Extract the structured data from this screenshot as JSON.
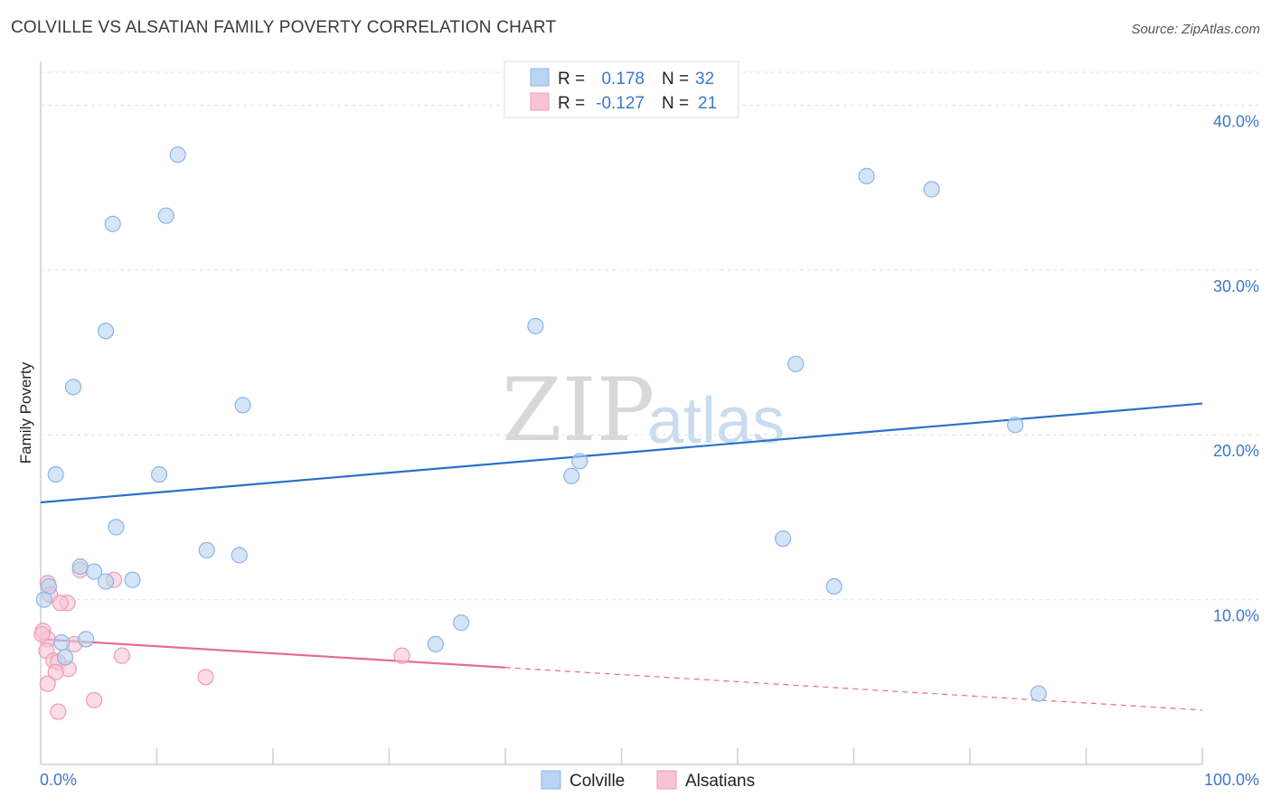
{
  "header": {
    "title": "COLVILLE VS ALSATIAN FAMILY POVERTY CORRELATION CHART",
    "source": "Source: ZipAtlas.com"
  },
  "watermark": {
    "zip": "ZIP",
    "atlas": "atlas"
  },
  "legend_top": {
    "rows": [
      {
        "r_label": "R =",
        "r_value": "0.178",
        "n_label": "N =",
        "n_value": "32"
      },
      {
        "r_label": "R =",
        "r_value": "-0.127",
        "n_label": "N =",
        "n_value": "21"
      }
    ]
  },
  "legend_bottom": {
    "items": [
      "Colville",
      "Alsatians"
    ]
  },
  "colors": {
    "colville_fill": "#b8d3f3",
    "colville_stroke": "#8cb4e6",
    "colville_line": "#2a6fcb",
    "alsatian_fill": "#f8c3d3",
    "alsatian_stroke": "#ef9bb6",
    "alsatian_line": "#e56b95",
    "accent_text": "#3d78c8",
    "grid": "#e4e4e4"
  },
  "chart_data": {
    "type": "scatter",
    "title": "COLVILLE VS ALSATIAN FAMILY POVERTY CORRELATION CHART",
    "xlabel": "",
    "ylabel": "Family Poverty",
    "xlim": [
      0,
      100
    ],
    "ylim": [
      0,
      42
    ],
    "x_tick_labels": [
      "0.0%",
      "100.0%"
    ],
    "y_ticks": [
      10,
      20,
      30,
      40
    ],
    "y_tick_labels": [
      "10.0%",
      "20.0%",
      "30.0%",
      "40.0%"
    ],
    "grid": true,
    "legend_placement": "bottom",
    "series": [
      {
        "name": "Colville",
        "r": 0.178,
        "n": 32,
        "points": [
          [
            11.8,
            37.0
          ],
          [
            6.2,
            32.8
          ],
          [
            10.8,
            33.3
          ],
          [
            71.1,
            35.7
          ],
          [
            76.7,
            34.9
          ],
          [
            5.6,
            26.3
          ],
          [
            42.6,
            26.6
          ],
          [
            2.8,
            22.9
          ],
          [
            17.4,
            21.8
          ],
          [
            65.0,
            24.3
          ],
          [
            83.9,
            20.6
          ],
          [
            1.3,
            17.6
          ],
          [
            10.2,
            17.6
          ],
          [
            46.4,
            18.4
          ],
          [
            45.7,
            17.5
          ],
          [
            6.5,
            14.4
          ],
          [
            14.3,
            13.0
          ],
          [
            17.1,
            12.7
          ],
          [
            63.9,
            13.7
          ],
          [
            3.4,
            12.0
          ],
          [
            4.6,
            11.7
          ],
          [
            5.6,
            11.1
          ],
          [
            7.9,
            11.2
          ],
          [
            68.3,
            10.8
          ],
          [
            0.7,
            10.8
          ],
          [
            0.3,
            10.0
          ],
          [
            3.9,
            7.6
          ],
          [
            1.8,
            7.4
          ],
          [
            36.2,
            8.6
          ],
          [
            34.0,
            7.3
          ],
          [
            2.1,
            6.5
          ],
          [
            85.9,
            4.3
          ]
        ],
        "trend": {
          "x": [
            0,
            100
          ],
          "y": [
            15.9,
            21.9
          ]
        }
      },
      {
        "name": "Alsatians",
        "r": -0.127,
        "n": 21,
        "points": [
          [
            0.6,
            11.0
          ],
          [
            0.8,
            10.3
          ],
          [
            2.3,
            9.8
          ],
          [
            1.7,
            9.8
          ],
          [
            3.4,
            11.8
          ],
          [
            6.3,
            11.2
          ],
          [
            0.2,
            8.1
          ],
          [
            0.6,
            7.6
          ],
          [
            2.9,
            7.3
          ],
          [
            0.5,
            6.9
          ],
          [
            1.1,
            6.3
          ],
          [
            1.5,
            6.2
          ],
          [
            2.4,
            5.8
          ],
          [
            1.3,
            5.6
          ],
          [
            7.0,
            6.6
          ],
          [
            31.1,
            6.6
          ],
          [
            14.2,
            5.3
          ],
          [
            0.6,
            4.9
          ],
          [
            4.6,
            3.9
          ],
          [
            1.5,
            3.2
          ],
          [
            0.1,
            7.9
          ]
        ],
        "trend": {
          "x": [
            0,
            100
          ],
          "y": [
            7.6,
            3.3
          ]
        },
        "trend_solid_until_x": 40
      }
    ]
  }
}
